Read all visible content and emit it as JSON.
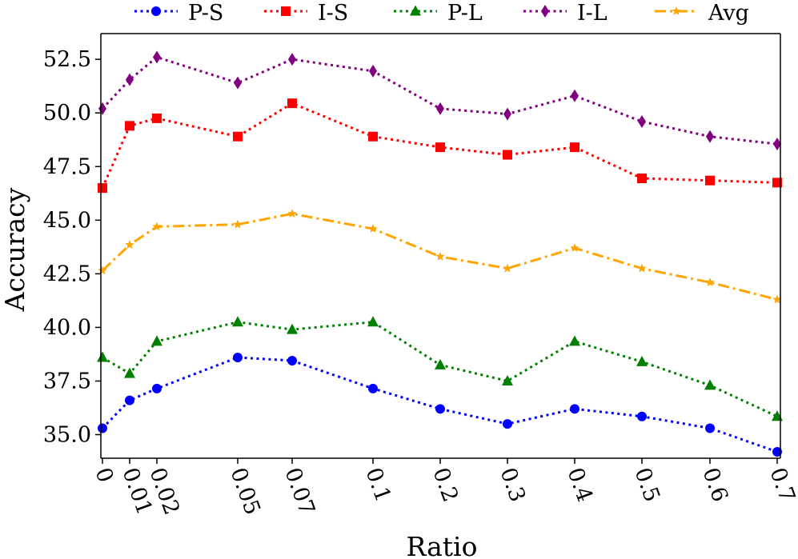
{
  "chart_data": {
    "type": "line",
    "xlabel": "Ratio",
    "ylabel": "Accuracy",
    "x": [
      0,
      0.01,
      0.02,
      0.05,
      0.07,
      0.1,
      0.2,
      0.3,
      0.4,
      0.5,
      0.6,
      0.7
    ],
    "x_tick_labels": [
      "0",
      "0.01",
      "0.02",
      "0.05",
      "0.07",
      "0.1",
      "0.2",
      "0.3",
      "0.4",
      "0.5",
      "0.6",
      "0.7"
    ],
    "x_scale": "categorical (ticks spaced non-uniformly; first six ticks at 0.01 spacing compressed, remaining evenly spaced)",
    "ylim": [
      33.9,
      53.7
    ],
    "y_ticks": [
      35.0,
      37.5,
      40.0,
      42.5,
      45.0,
      47.5,
      50.0,
      52.5
    ],
    "y_tick_labels": [
      "35.0",
      "37.5",
      "40.0",
      "42.5",
      "45.0",
      "47.5",
      "50.0",
      "52.5"
    ],
    "grid": false,
    "legend_position": "top",
    "series": [
      {
        "name": "P-S",
        "color": "#0000ff",
        "marker": "circle",
        "line": "dotted",
        "values": [
          35.3,
          36.6,
          37.15,
          38.6,
          38.45,
          37.15,
          36.2,
          35.5,
          36.2,
          35.85,
          35.3,
          34.2
        ]
      },
      {
        "name": "I-S",
        "color": "#ff0000",
        "marker": "square",
        "line": "dotted",
        "values": [
          46.5,
          49.4,
          49.75,
          48.9,
          50.45,
          48.9,
          48.4,
          48.05,
          48.4,
          46.95,
          46.85,
          46.75
        ]
      },
      {
        "name": "P-L",
        "color": "#008000",
        "marker": "triangle",
        "line": "dotted",
        "values": [
          38.6,
          37.85,
          39.35,
          40.25,
          39.9,
          40.25,
          38.25,
          37.5,
          39.35,
          38.4,
          37.3,
          35.85
        ]
      },
      {
        "name": "I-L",
        "color": "#800080",
        "marker": "diamond",
        "line": "dotted",
        "values": [
          50.2,
          51.55,
          52.6,
          51.4,
          52.5,
          51.95,
          50.2,
          49.95,
          50.8,
          49.6,
          48.9,
          48.55
        ]
      },
      {
        "name": "Avg",
        "color": "#ffa500",
        "marker": "star",
        "line": "dashdot",
        "values": [
          42.65,
          43.85,
          44.7,
          44.8,
          45.3,
          44.6,
          43.3,
          42.75,
          43.7,
          42.75,
          42.1,
          41.3
        ]
      }
    ]
  }
}
